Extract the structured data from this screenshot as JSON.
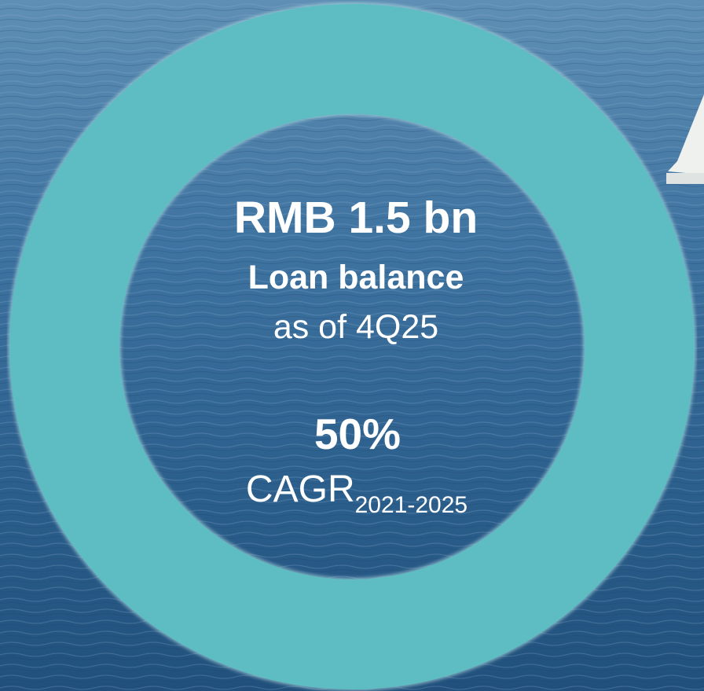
{
  "headline": "RMB 1.5 bn",
  "headline_label": "Loan balance",
  "headline_note": "as of 4Q25",
  "growth": "50%",
  "growth_label": "CAGR",
  "growth_period": "2021-2025"
}
